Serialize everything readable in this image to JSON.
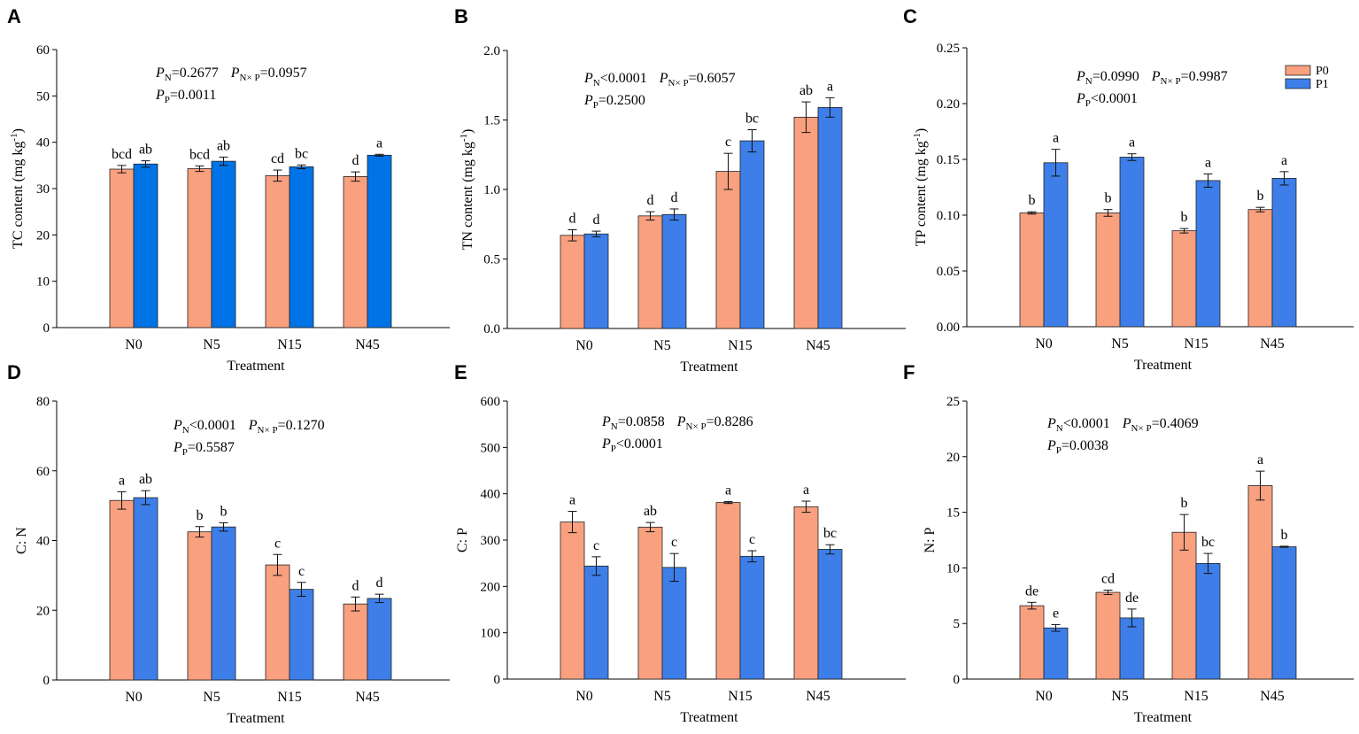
{
  "chart_data": [
    {
      "panel": "A",
      "type": "bar",
      "title": "",
      "xlabel": "Treatment",
      "ylabel": "TC content (mg kg-1)",
      "ylabel_main": "TC content (mg kg",
      "ylabel_sup": "-1",
      "ylabel_close": ")",
      "ylim": [
        0,
        60
      ],
      "yticks": [
        0,
        10,
        20,
        30,
        40,
        50,
        60
      ],
      "tick_decimals": 0,
      "categories": [
        "N0",
        "N5",
        "N15",
        "N45"
      ],
      "series": [
        {
          "name": "P0",
          "color": "#f9a07f",
          "values": [
            34.2,
            34.3,
            32.8,
            32.6
          ],
          "errors": [
            0.8,
            0.6,
            1.2,
            1.0
          ],
          "letters": [
            "bcd",
            "bcd",
            "cd",
            "d"
          ]
        },
        {
          "name": "P1",
          "color": "#0073e6",
          "values": [
            35.3,
            35.9,
            34.7,
            37.2
          ],
          "errors": [
            0.7,
            0.9,
            0.4,
            0.2
          ],
          "letters": [
            "ab",
            "ab",
            "bc",
            "a"
          ]
        }
      ],
      "stats": {
        "line1a": "=0.2677",
        "line1b": "=0.0957",
        "line2": "=0.0011"
      }
    },
    {
      "panel": "B",
      "type": "bar",
      "title": "",
      "xlabel": "Treatment",
      "ylabel": "TN content (mg kg-1)",
      "ylabel_main": "TN content (mg kg",
      "ylabel_sup": "-1",
      "ylabel_close": ")",
      "ylim": [
        0,
        2.0
      ],
      "yticks": [
        0,
        0.5,
        1.0,
        1.5,
        2.0
      ],
      "tick_decimals": 1,
      "categories": [
        "N0",
        "N5",
        "N15",
        "N45"
      ],
      "series": [
        {
          "name": "P0",
          "color": "#f9a07f",
          "values": [
            0.67,
            0.81,
            1.13,
            1.52
          ],
          "errors": [
            0.04,
            0.03,
            0.13,
            0.11
          ],
          "letters": [
            "d",
            "d",
            "c",
            "ab"
          ]
        },
        {
          "name": "P1",
          "color": "#3d7ee8",
          "values": [
            0.68,
            0.82,
            1.35,
            1.59
          ],
          "errors": [
            0.02,
            0.04,
            0.08,
            0.07
          ],
          "letters": [
            "d",
            "d",
            "bc",
            "a"
          ]
        }
      ],
      "stats": {
        "line1a": "<0.0001",
        "line1b": "=0.6057",
        "line2": "=0.2500"
      }
    },
    {
      "panel": "C",
      "type": "bar",
      "title": "",
      "xlabel": "Treatment",
      "ylabel": "TP content (mg kg-1)",
      "ylabel_main": "TP content (mg kg",
      "ylabel_sup": "-1",
      "ylabel_close": ")",
      "ylim": [
        0,
        0.25
      ],
      "yticks": [
        0,
        0.05,
        0.1,
        0.15,
        0.2,
        0.25
      ],
      "tick_decimals": 2,
      "categories": [
        "N0",
        "N5",
        "N15",
        "N45"
      ],
      "series": [
        {
          "name": "P0",
          "color": "#f9a07f",
          "values": [
            0.102,
            0.102,
            0.086,
            0.105
          ],
          "errors": [
            0.001,
            0.003,
            0.002,
            0.002
          ],
          "letters": [
            "b",
            "b",
            "b",
            "b"
          ]
        },
        {
          "name": "P1",
          "color": "#3d7ee8",
          "values": [
            0.147,
            0.152,
            0.131,
            0.133
          ],
          "errors": [
            0.012,
            0.003,
            0.006,
            0.006
          ],
          "letters": [
            "a",
            "a",
            "a",
            "a"
          ]
        }
      ],
      "stats": {
        "line1a": "=0.0990",
        "line1b": "=0.9987",
        "line2": "<0.0001"
      },
      "legend": [
        "P0",
        "P1"
      ]
    },
    {
      "panel": "D",
      "type": "bar",
      "title": "",
      "xlabel": "Treatment",
      "ylabel": "C: N",
      "ylabel_main": "C: N",
      "ylabel_sup": "",
      "ylabel_close": "",
      "ylim": [
        0,
        80
      ],
      "yticks": [
        0,
        20,
        40,
        60,
        80
      ],
      "tick_decimals": 0,
      "categories": [
        "N0",
        "N5",
        "N15",
        "N45"
      ],
      "series": [
        {
          "name": "P0",
          "color": "#f9a07f",
          "values": [
            51.5,
            42.5,
            33.0,
            21.8
          ],
          "errors": [
            2.5,
            1.5,
            3.0,
            2.0
          ],
          "letters": [
            "a",
            "b",
            "c",
            "d"
          ]
        },
        {
          "name": "P1",
          "color": "#3d7ee8",
          "values": [
            52.3,
            43.9,
            26.0,
            23.4
          ],
          "errors": [
            2.0,
            1.2,
            2.0,
            1.2
          ],
          "letters": [
            "ab",
            "b",
            "c",
            "d"
          ]
        }
      ],
      "stats": {
        "line1a": "<0.0001",
        "line1b": "=0.1270",
        "line2": "=0.5587"
      }
    },
    {
      "panel": "E",
      "type": "bar",
      "title": "",
      "xlabel": "Treatment",
      "ylabel": "C: P",
      "ylabel_main": "C: P",
      "ylabel_sup": "",
      "ylabel_close": "",
      "ylim": [
        0,
        600
      ],
      "yticks": [
        0,
        100,
        200,
        300,
        400,
        500,
        600
      ],
      "tick_decimals": 0,
      "categories": [
        "N0",
        "N5",
        "N15",
        "N45"
      ],
      "series": [
        {
          "name": "P0",
          "color": "#f9a07f",
          "values": [
            339,
            328,
            381,
            372
          ],
          "errors": [
            23,
            10,
            2,
            12
          ],
          "letters": [
            "a",
            "ab",
            "a",
            "a"
          ]
        },
        {
          "name": "P1",
          "color": "#3d7ee8",
          "values": [
            244,
            241,
            265,
            280
          ],
          "errors": [
            20,
            30,
            12,
            10
          ],
          "letters": [
            "c",
            "c",
            "c",
            "bc"
          ]
        }
      ],
      "stats": {
        "line1a": "=0.0858",
        "line1b": "=0.8286",
        "line2": "<0.0001"
      }
    },
    {
      "panel": "F",
      "type": "bar",
      "title": "",
      "xlabel": "Treatment",
      "ylabel": "N: P",
      "ylabel_main": "N: P",
      "ylabel_sup": "",
      "ylabel_close": "",
      "ylim": [
        0,
        25
      ],
      "yticks": [
        0,
        5,
        10,
        15,
        20,
        25
      ],
      "tick_decimals": 0,
      "categories": [
        "N0",
        "N5",
        "N15",
        "N45"
      ],
      "series": [
        {
          "name": "P0",
          "color": "#f9a07f",
          "values": [
            6.6,
            7.8,
            13.2,
            17.4
          ],
          "errors": [
            0.3,
            0.2,
            1.6,
            1.3
          ],
          "letters": [
            "de",
            "cd",
            "b",
            "a"
          ]
        },
        {
          "name": "P1",
          "color": "#3d7ee8",
          "values": [
            4.6,
            5.5,
            10.4,
            11.9
          ],
          "errors": [
            0.3,
            0.8,
            0.9,
            0.05
          ],
          "letters": [
            "e",
            "de",
            "bc",
            "b"
          ]
        }
      ],
      "stats": {
        "line1a": "<0.0001",
        "line1b": "=0.4069",
        "line2": "=0.0038"
      }
    }
  ],
  "stat_labels": {
    "p": "P",
    "sub_n": "N",
    "sub_p": "P",
    "sub_nxp": "N× P"
  }
}
